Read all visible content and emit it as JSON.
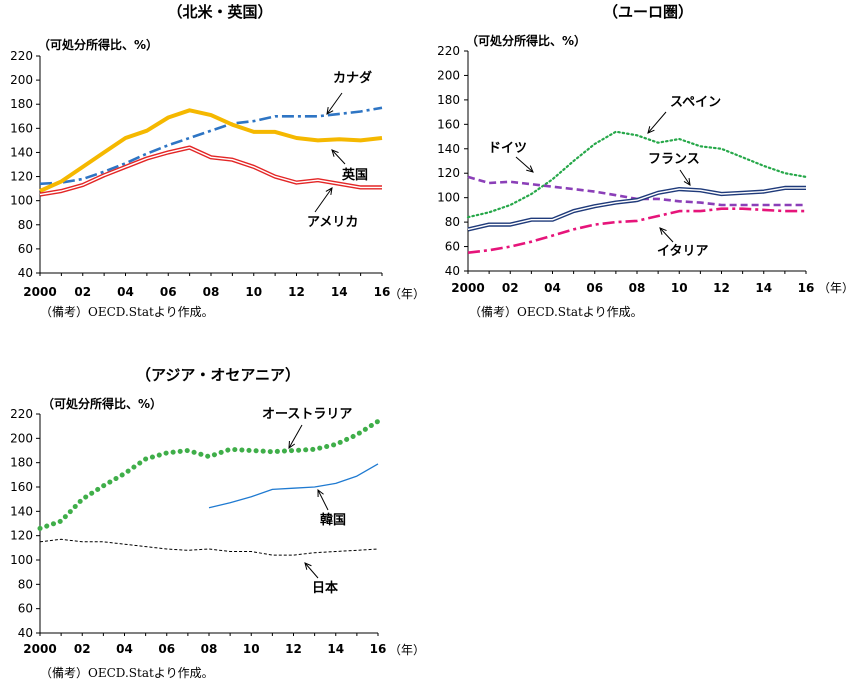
{
  "chart_data": [
    {
      "type": "line",
      "title": "（北米・英国）",
      "ylabel": "（可処分所得比、%）",
      "xunit": "（年）",
      "note": "（備考）OECD.Statより作成。",
      "ylim": [
        40,
        220
      ],
      "yticks": [
        40,
        60,
        80,
        100,
        120,
        140,
        160,
        180,
        200,
        220
      ],
      "xlim": [
        2000,
        2016
      ],
      "xticks": [
        "2000",
        "02",
        "04",
        "06",
        "08",
        "10",
        "12",
        "14",
        "16"
      ],
      "x": [
        2000,
        2001,
        2002,
        2003,
        2004,
        2005,
        2006,
        2007,
        2008,
        2009,
        2010,
        2011,
        2012,
        2013,
        2014,
        2015,
        2016
      ],
      "series": [
        {
          "name": "カナダ",
          "color": "#2e75c4",
          "style": "dashdot",
          "values": [
            114,
            115,
            118,
            124,
            131,
            139,
            146,
            152,
            158,
            164,
            166,
            170,
            170,
            170,
            172,
            174,
            177
          ]
        },
        {
          "name": "英国",
          "color": "#f5b800",
          "style": "thick",
          "values": [
            108,
            116,
            128,
            140,
            152,
            158,
            169,
            175,
            171,
            163,
            157,
            157,
            152,
            150,
            151,
            150,
            152
          ]
        },
        {
          "name": "アメリカ",
          "color": "#e32626",
          "style": "double",
          "values": [
            105,
            108,
            113,
            121,
            128,
            135,
            140,
            144,
            136,
            134,
            128,
            120,
            115,
            117,
            114,
            111,
            111
          ]
        }
      ],
      "annotations": [
        {
          "text": "カナダ"
        },
        {
          "text": "英国"
        },
        {
          "text": "アメリカ"
        }
      ]
    },
    {
      "type": "line",
      "title": "（ユーロ圏）",
      "ylabel": "（可処分所得比、%）",
      "xunit": "（年）",
      "note": "（備考）OECD.Statより作成。",
      "ylim": [
        40,
        220
      ],
      "yticks": [
        40,
        60,
        80,
        100,
        120,
        140,
        160,
        180,
        200,
        220
      ],
      "xlim": [
        2000,
        2016
      ],
      "xticks": [
        "2000",
        "02",
        "04",
        "06",
        "08",
        "10",
        "12",
        "14",
        "16"
      ],
      "x": [
        2000,
        2001,
        2002,
        2003,
        2004,
        2005,
        2006,
        2007,
        2008,
        2009,
        2010,
        2011,
        2012,
        2013,
        2014,
        2015,
        2016
      ],
      "series": [
        {
          "name": "スペイン",
          "color": "#27a84a",
          "style": "dotted",
          "values": [
            84,
            88,
            94,
            103,
            115,
            130,
            144,
            154,
            151,
            145,
            148,
            142,
            140,
            133,
            126,
            120,
            117
          ]
        },
        {
          "name": "ドイツ",
          "color": "#8b3fb8",
          "style": "dashed",
          "values": [
            117,
            112,
            113,
            111,
            109,
            107,
            105,
            102,
            99,
            99,
            97,
            96,
            94,
            94,
            94,
            94,
            94
          ]
        },
        {
          "name": "フランス",
          "color": "#1f3a7a",
          "style": "double",
          "values": [
            74,
            78,
            78,
            82,
            82,
            89,
            93,
            96,
            98,
            104,
            107,
            106,
            103,
            104,
            105,
            108,
            108
          ]
        },
        {
          "name": "イタリア",
          "color": "#e6147a",
          "style": "dashdot",
          "values": [
            55,
            57,
            60,
            64,
            69,
            74,
            78,
            80,
            81,
            85,
            89,
            89,
            91,
            91,
            90,
            89,
            89
          ]
        }
      ],
      "annotations": [
        {
          "text": "スペイン"
        },
        {
          "text": "ドイツ"
        },
        {
          "text": "フランス"
        },
        {
          "text": "イタリア"
        }
      ]
    },
    {
      "type": "line",
      "title": "（アジア・オセアニア）",
      "ylabel": "（可処分所得比、%）",
      "xunit": "（年）",
      "note": "（備考）OECD.Statより作成。",
      "ylim": [
        40,
        220
      ],
      "yticks": [
        40,
        60,
        80,
        100,
        120,
        140,
        160,
        180,
        200,
        220
      ],
      "xlim": [
        2000,
        2016
      ],
      "xticks": [
        "2000",
        "02",
        "04",
        "06",
        "08",
        "10",
        "12",
        "14",
        "16"
      ],
      "x": [
        2000,
        2001,
        2002,
        2003,
        2004,
        2005,
        2006,
        2007,
        2008,
        2009,
        2010,
        2011,
        2012,
        2013,
        2014,
        2015,
        2016
      ],
      "series": [
        {
          "name": "オーストラリア",
          "color": "#3fae49",
          "style": "bigdots",
          "values": [
            126,
            132,
            150,
            161,
            171,
            183,
            188,
            190,
            185,
            191,
            190,
            189,
            190,
            191,
            195,
            203,
            214
          ]
        },
        {
          "name": "韓国",
          "color": "#1f7ad1",
          "style": "solid",
          "values": [
            null,
            null,
            null,
            null,
            null,
            null,
            null,
            null,
            143,
            147,
            152,
            158,
            159,
            160,
            163,
            169,
            179
          ]
        },
        {
          "name": "日本",
          "color": "#000000",
          "style": "finedash",
          "values": [
            115,
            117,
            115,
            115,
            113,
            111,
            109,
            108,
            109,
            107,
            107,
            104,
            104,
            106,
            107,
            108,
            109
          ]
        }
      ],
      "annotations": [
        {
          "text": "オーストラリア"
        },
        {
          "text": "韓国"
        },
        {
          "text": "日本"
        }
      ]
    }
  ]
}
